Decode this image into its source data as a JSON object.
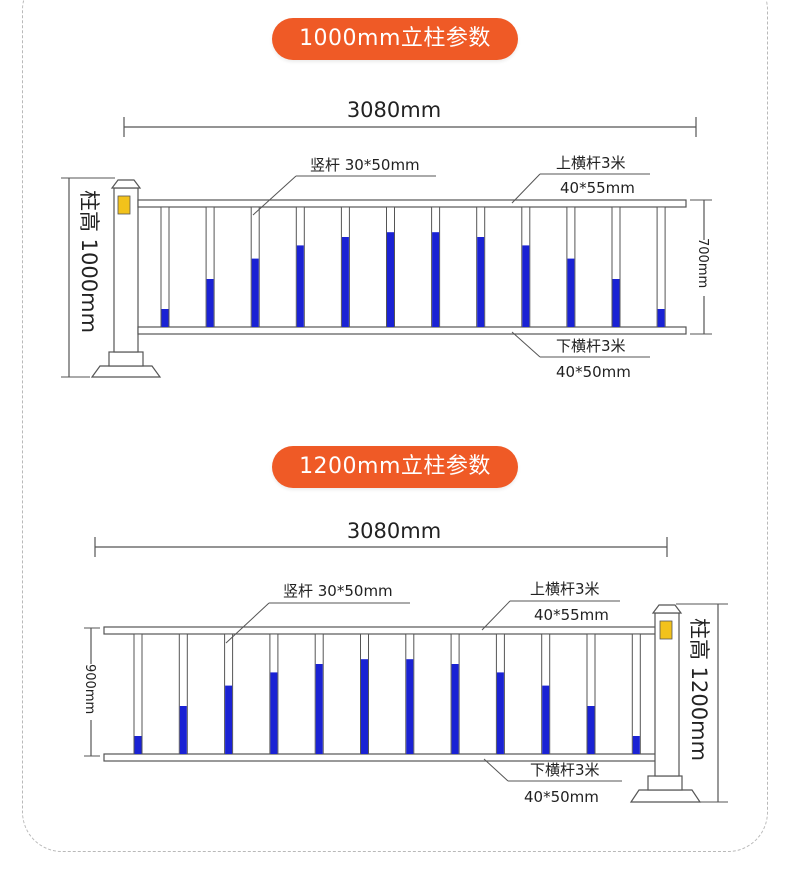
{
  "sections": [
    {
      "title": "1000mm立柱参数",
      "overall_width": "3080mm",
      "post_height_label": "柱高 1000mm",
      "rail_height_label": "700mm",
      "vertical_bar_label": "竖杆 30*50mm",
      "top_rail_label": "上横杆3米",
      "top_rail_size": "40*55mm",
      "bottom_rail_label": "下横杆3米",
      "bottom_rail_size": "40*50mm"
    },
    {
      "title": "1200mm立柱参数",
      "overall_width": "3080mm",
      "post_height_label": "柱高 1200mm",
      "rail_height_label": "900mm",
      "vertical_bar_label": "竖杆 30*50mm",
      "top_rail_label": "上横杆3米",
      "top_rail_size": "40*55mm",
      "bottom_rail_label": "下横杆3米",
      "bottom_rail_size": "40*50mm"
    }
  ],
  "colors": {
    "badge": "#ef5a26",
    "bar_blue": "#1a22d4",
    "post_yellow": "#f2c21b",
    "line": "#555555"
  },
  "bar_blue_fill_fractions": [
    0.15,
    0.4,
    0.57,
    0.68,
    0.75,
    0.79,
    0.79,
    0.75,
    0.68,
    0.57,
    0.4,
    0.15
  ]
}
